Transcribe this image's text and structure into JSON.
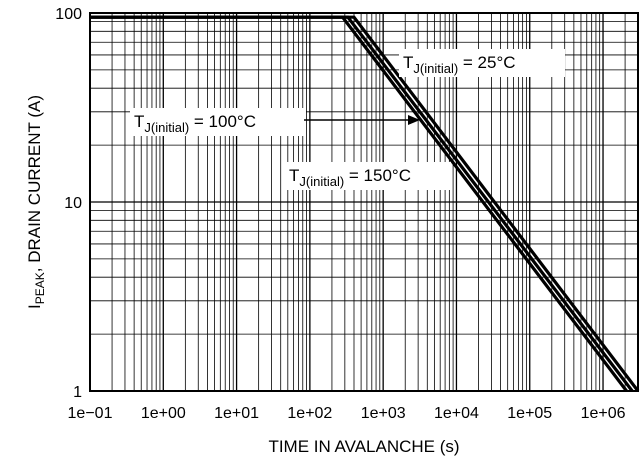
{
  "chart_data": {
    "type": "line",
    "xscale": "log",
    "yscale": "log",
    "xlim": [
      0.1,
      3000000
    ],
    "ylim": [
      1,
      100
    ],
    "grid": true,
    "xlabel": "TIME IN AVALANCHE (s)",
    "ylabel": {
      "main": "I",
      "sub": "PEAK",
      "rest": ", DRAIN CURRENT (A)"
    },
    "x_ticks": [
      0.1,
      1,
      10,
      100,
      1000,
      10000,
      100000,
      1000000
    ],
    "x_tick_labels": [
      "1e−01",
      "1e+00",
      "1e+01",
      "1e+02",
      "1e+03",
      "1e+04",
      "1e+05",
      "1e+06"
    ],
    "y_ticks": [
      1,
      10,
      100
    ],
    "y_tick_labels": [
      "1",
      "10",
      "100"
    ],
    "series": [
      {
        "x": [
          0.1,
          400,
          3000000
        ],
        "y": [
          95,
          95,
          1
        ]
      },
      {
        "x": [
          0.1,
          330,
          2500000
        ],
        "y": [
          95,
          95,
          1
        ]
      },
      {
        "x": [
          0.1,
          280,
          2100000
        ],
        "y": [
          95,
          95,
          1
        ]
      }
    ],
    "annotations": [
      {
        "main": "T",
        "sub": "J(initial)",
        "rest": " = 25°C"
      },
      {
        "main": "T",
        "sub": "J(initial)",
        "rest": " = 100°C"
      },
      {
        "main": "T",
        "sub": "J(initial)",
        "rest": " = 150°C"
      }
    ]
  }
}
